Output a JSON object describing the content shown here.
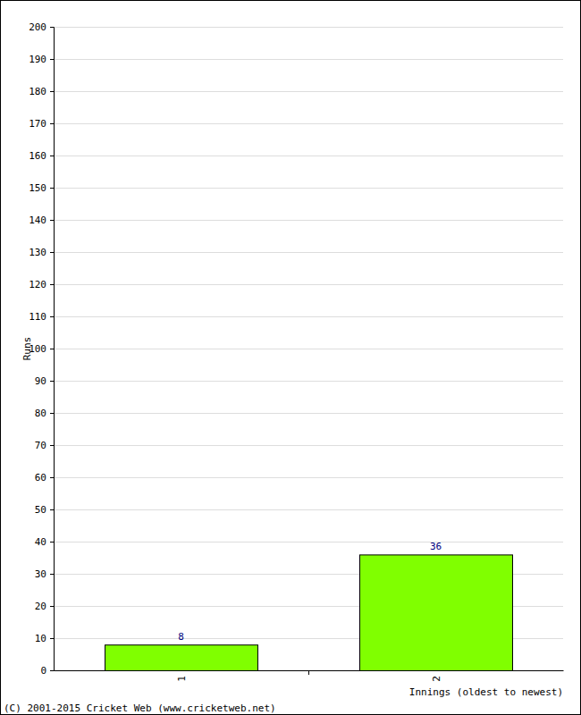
{
  "chart_data": {
    "type": "bar",
    "categories": [
      "1",
      "2"
    ],
    "values": [
      8,
      36
    ],
    "color": "#80ff00",
    "x_label": "Innings (oldest to newest)",
    "y_label": "Runs",
    "ylim": [
      0,
      200
    ],
    "yticks": [
      0,
      10,
      20,
      30,
      40,
      50,
      60,
      70,
      80,
      90,
      100,
      110,
      120,
      130,
      140,
      150,
      160,
      170,
      180,
      190,
      200
    ],
    "grid": true,
    "data_labels": true,
    "annotations": [
      "(C) 2001-2015 Cricket Web (www.cricketweb.net)"
    ]
  }
}
